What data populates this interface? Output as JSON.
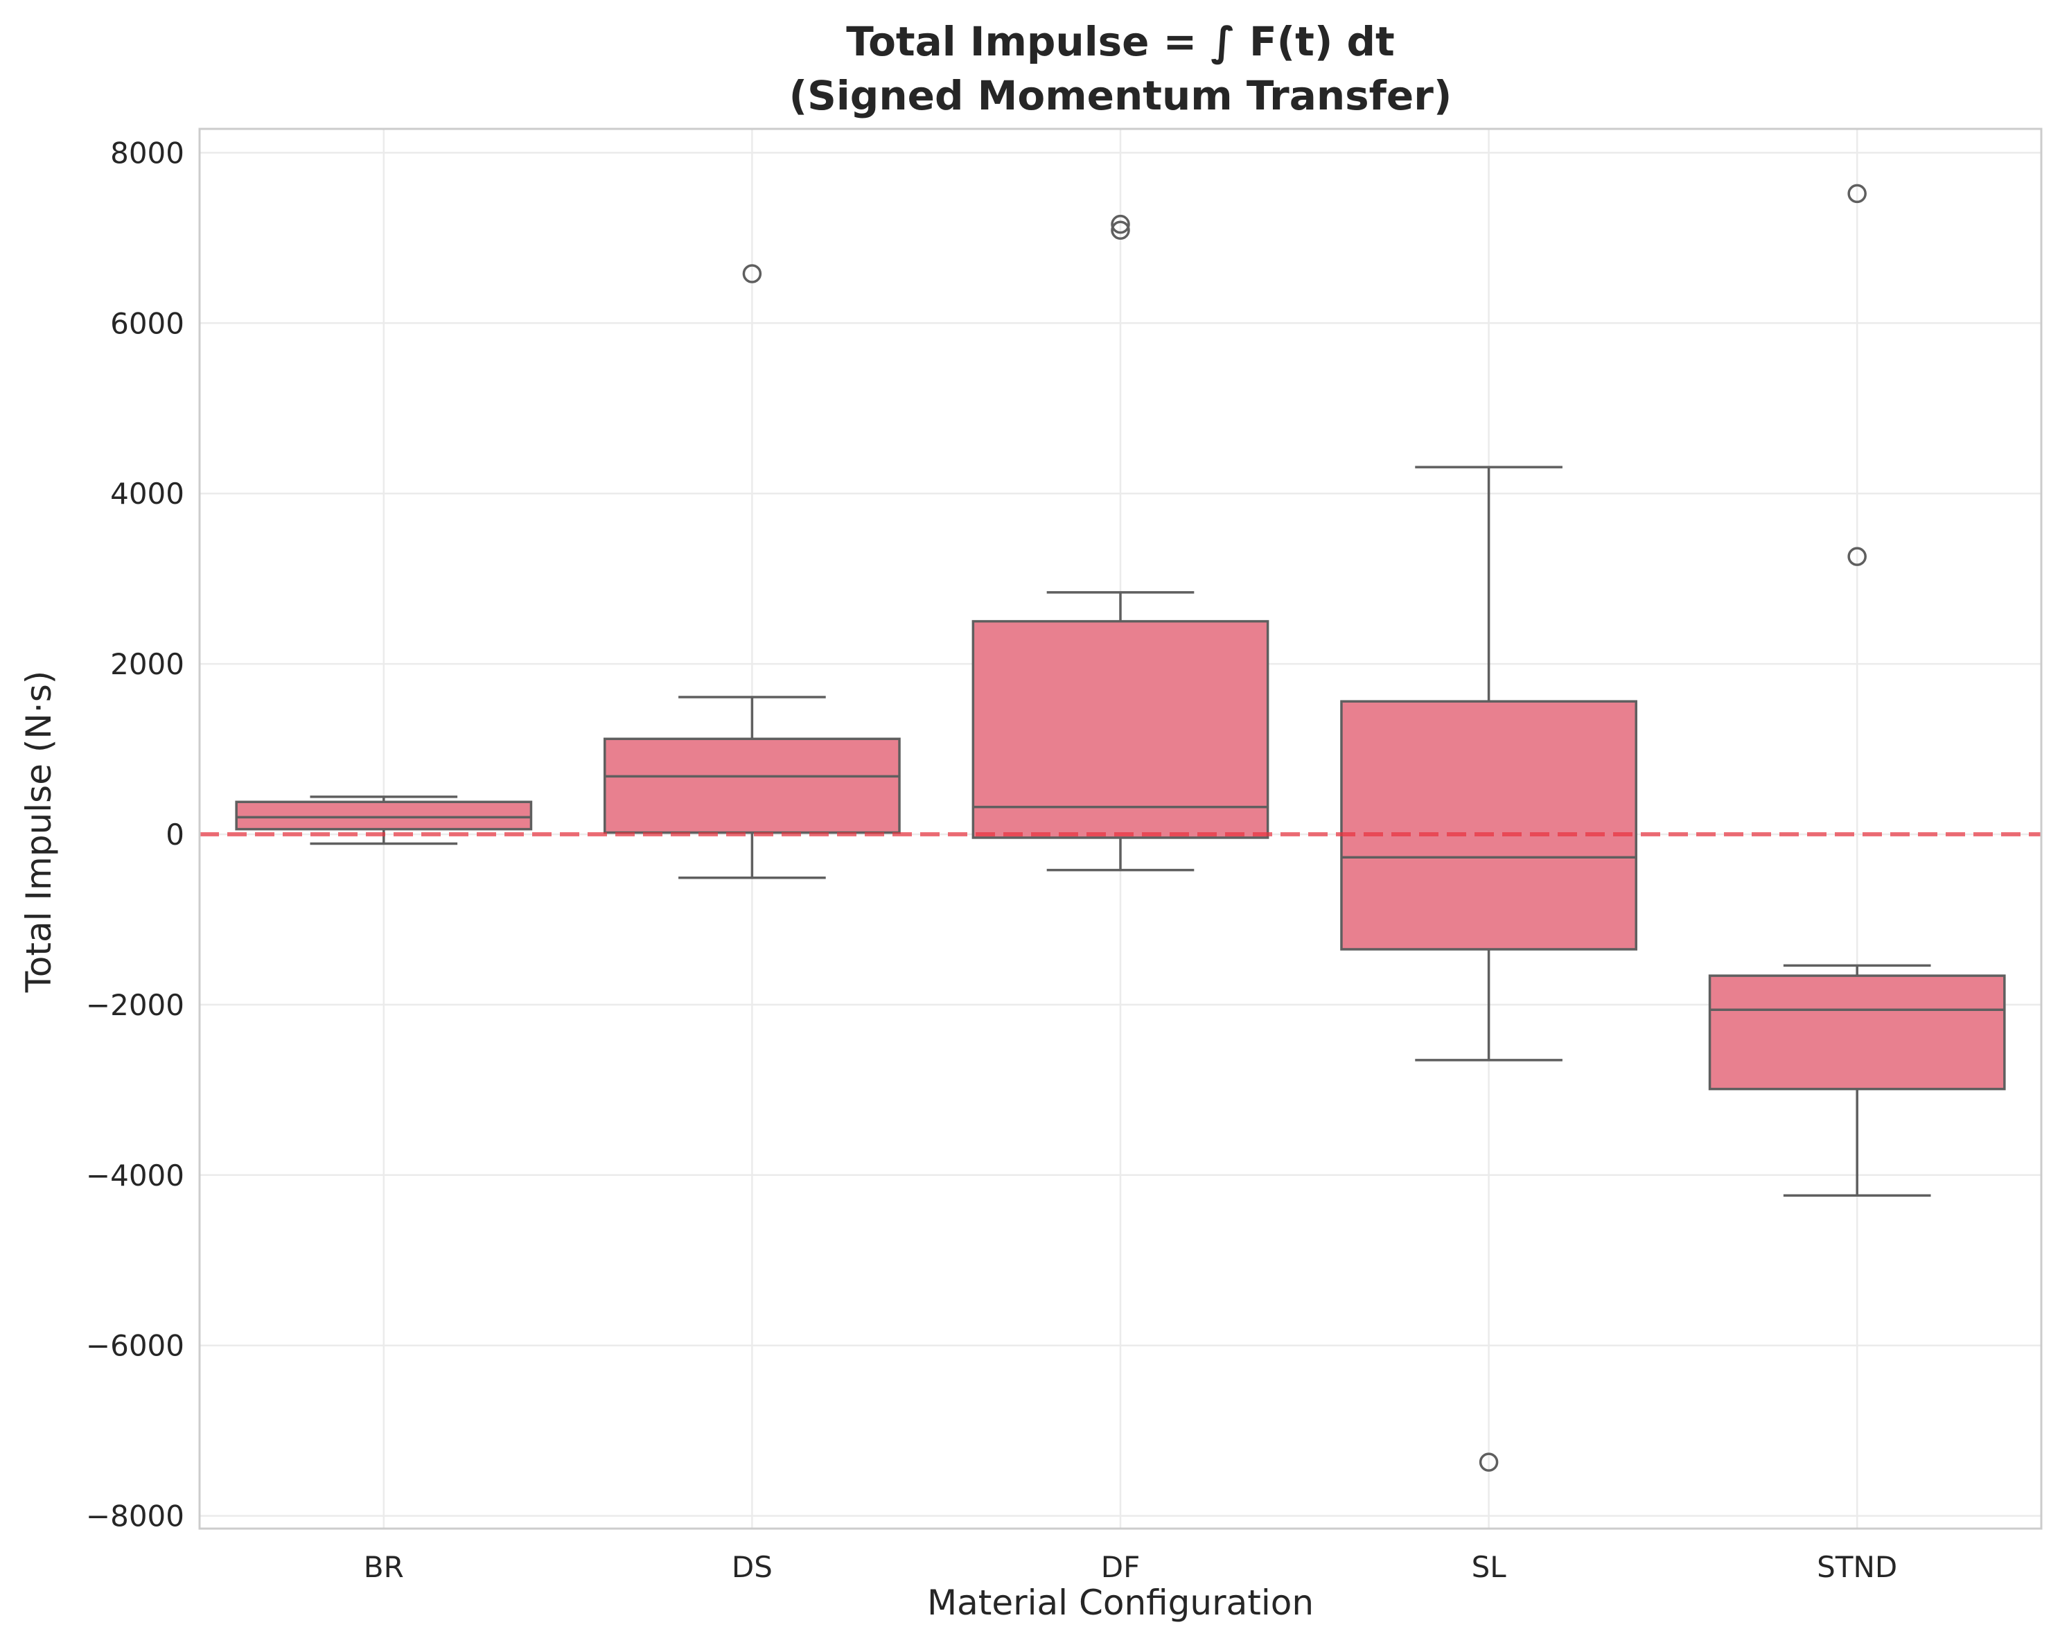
{
  "chart_data": {
    "type": "box",
    "title_line1": "Total Impulse = ∫ F(t) dt",
    "title_line2": "(Signed Momentum Transfer)",
    "xlabel": "Material Configuration",
    "ylabel": "Total Impulse (N·s)",
    "ylim": [
      -8100,
      8300
    ],
    "yticks": [
      -8000,
      -6000,
      -4000,
      -2000,
      0,
      2000,
      4000,
      6000,
      8000
    ],
    "ytick_labels": [
      "−8000",
      "−6000",
      "−4000",
      "−2000",
      "0",
      "2000",
      "4000",
      "6000",
      "8000"
    ],
    "grid": true,
    "reference_line": {
      "y": 0,
      "style": "dashed",
      "color": "#e8333f"
    },
    "box_color": "#e8808f",
    "categories": [
      "BR",
      "DS",
      "DF",
      "SL",
      "STND"
    ],
    "boxes": [
      {
        "category": "BR",
        "whisker_low": -110,
        "q1": 60,
        "median": 200,
        "q3": 380,
        "whisker_high": 440,
        "outliers": []
      },
      {
        "category": "DS",
        "whisker_low": -510,
        "q1": 20,
        "median": 680,
        "q3": 1120,
        "whisker_high": 1610,
        "outliers": [
          6580
        ]
      },
      {
        "category": "DF",
        "whisker_low": -420,
        "q1": -40,
        "median": 320,
        "q3": 2500,
        "whisker_high": 2840,
        "outliers": [
          7090,
          7160
        ]
      },
      {
        "category": "SL",
        "whisker_low": -2650,
        "q1": -1350,
        "median": -270,
        "q3": 1560,
        "whisker_high": 4310,
        "outliers": [
          -7370
        ]
      },
      {
        "category": "STND",
        "whisker_low": -4240,
        "q1": -2990,
        "median": -2060,
        "q3": -1660,
        "whisker_high": -1540,
        "outliers": [
          3260,
          7520
        ]
      }
    ]
  }
}
